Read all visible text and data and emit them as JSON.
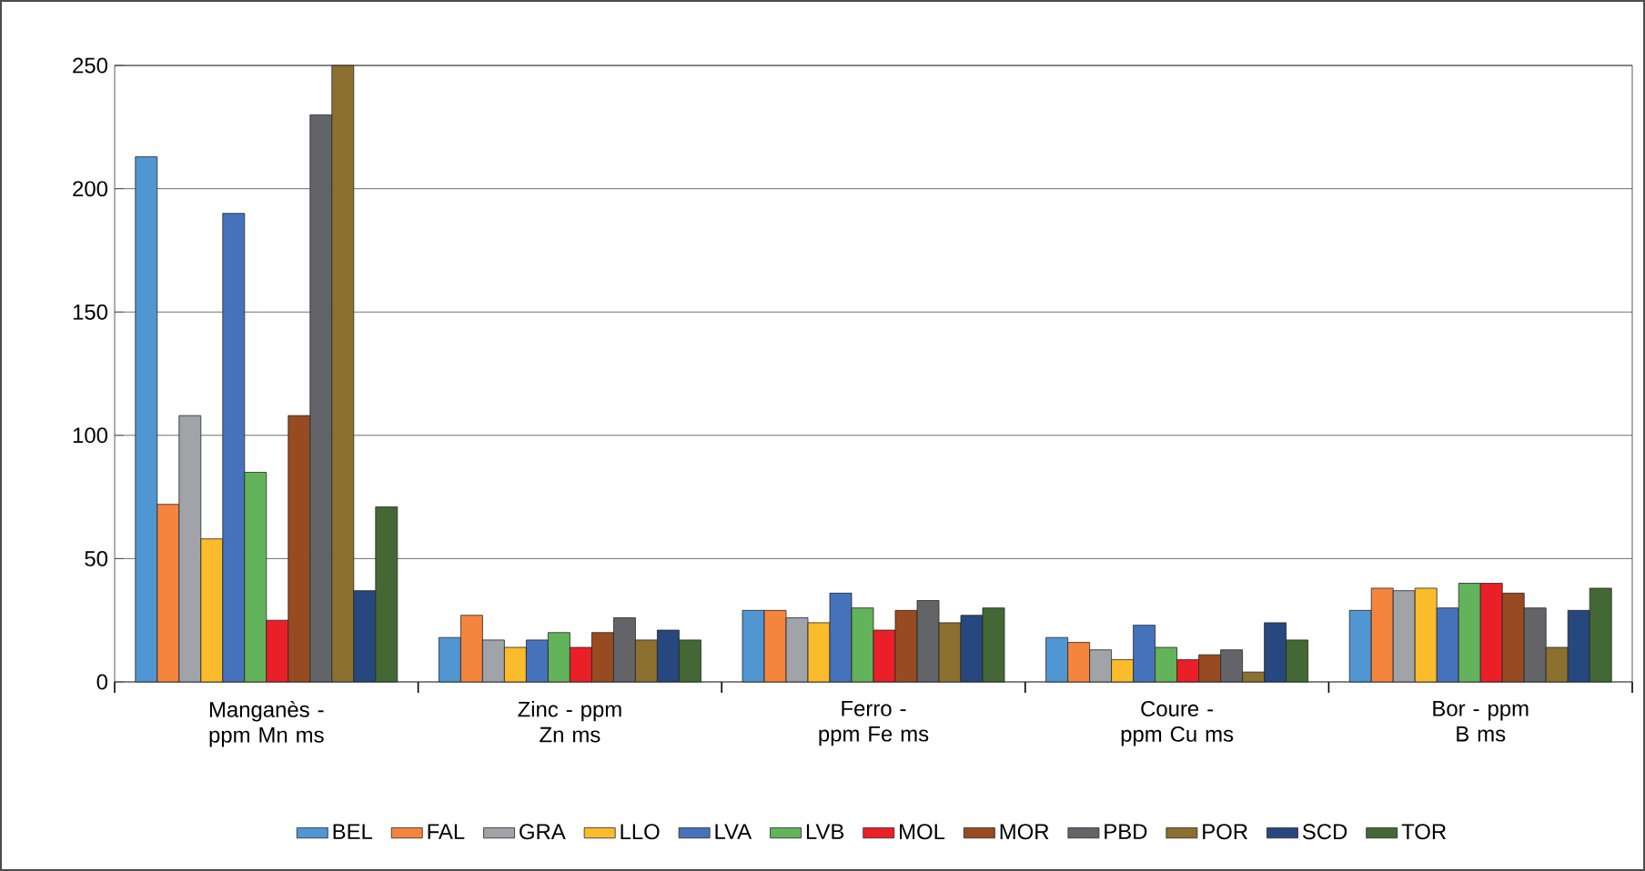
{
  "chart_data": {
    "type": "bar",
    "categories": [
      "Manganès - ppm Mn ms",
      "Zinc - ppm Zn ms",
      "Ferro - ppm Fe ms",
      "Coure - ppm Cu ms",
      "Bor - ppm B ms"
    ],
    "series": [
      {
        "name": "BEL",
        "color": "#4f96d2",
        "values": [
          213,
          18,
          29,
          18,
          29
        ]
      },
      {
        "name": "FAL",
        "color": "#f5843e",
        "values": [
          72,
          27,
          29,
          16,
          38
        ]
      },
      {
        "name": "GRA",
        "color": "#a0a3a8",
        "values": [
          108,
          17,
          26,
          13,
          37
        ]
      },
      {
        "name": "LLO",
        "color": "#fbbc2b",
        "values": [
          58,
          14,
          24,
          9,
          38
        ]
      },
      {
        "name": "LVA",
        "color": "#4672bb",
        "values": [
          190,
          17,
          36,
          23,
          30
        ]
      },
      {
        "name": "LVB",
        "color": "#63b35a",
        "values": [
          85,
          20,
          30,
          14,
          40
        ]
      },
      {
        "name": "MOL",
        "color": "#ea1f27",
        "values": [
          25,
          14,
          21,
          9,
          40
        ]
      },
      {
        "name": "MOR",
        "color": "#984b21",
        "values": [
          108,
          20,
          29,
          11,
          36
        ]
      },
      {
        "name": "PBD",
        "color": "#626468",
        "values": [
          230,
          26,
          33,
          13,
          30
        ]
      },
      {
        "name": "POR",
        "color": "#8c7030",
        "values": [
          250,
          17,
          24,
          4,
          14
        ]
      },
      {
        "name": "SCD",
        "color": "#27477f",
        "values": [
          37,
          21,
          27,
          24,
          29
        ]
      },
      {
        "name": "TOR",
        "color": "#436836",
        "values": [
          71,
          17,
          30,
          17,
          38
        ]
      }
    ],
    "ylim": [
      0,
      250
    ],
    "yticks": [
      0,
      50,
      100,
      150,
      200,
      250
    ],
    "grid": "y",
    "legend": "bottom"
  }
}
